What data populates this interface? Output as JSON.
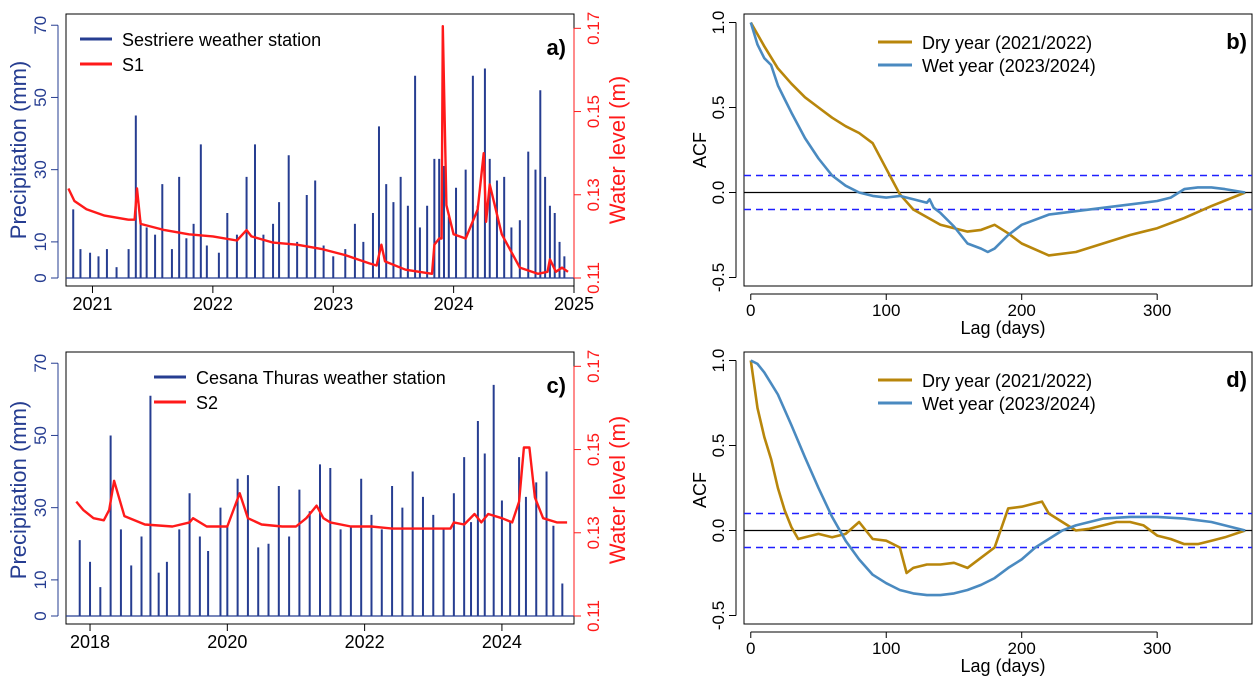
{
  "colors": {
    "precip": "#263d91",
    "level": "#ff1a1a",
    "dry": "#b8860b",
    "wet": "#4a8ac0",
    "ci": "#1f1fff",
    "axis": "#000000"
  },
  "chart_data": [
    {
      "id": "a",
      "type": "bar+line",
      "panel_label": "a)",
      "ylabel_left": "Precipitation (mm)",
      "ylabel_right": "Water level (m)",
      "xlim": [
        2020.78,
        2025.0
      ],
      "x_ticks": [
        2021,
        2022,
        2023,
        2024,
        2025
      ],
      "x_tick_labels": [
        "2021",
        "2022",
        "2023",
        "2024",
        "2025"
      ],
      "ylim_left": [
        0,
        72
      ],
      "y_ticks_left": [
        0,
        10,
        30,
        50,
        70
      ],
      "y_tick_labels_left": [
        "0",
        "10",
        "30",
        "50",
        "70"
      ],
      "ylim_right": [
        0.11,
        0.172
      ],
      "y_ticks_right": [
        0.11,
        0.13,
        0.15,
        0.17
      ],
      "y_tick_labels_right": [
        "0.11",
        "0.13",
        "0.15",
        "0.17"
      ],
      "legend": [
        {
          "name": "Sestriere weather station",
          "color_key": "precip"
        },
        {
          "name": "S1",
          "color_key": "level"
        }
      ],
      "legend_position": "top-left",
      "precipitation_bars": [
        [
          2020.84,
          19
        ],
        [
          2020.9,
          8
        ],
        [
          2020.98,
          7
        ],
        [
          2021.05,
          6
        ],
        [
          2021.12,
          8
        ],
        [
          2021.2,
          3
        ],
        [
          2021.3,
          8
        ],
        [
          2021.36,
          45
        ],
        [
          2021.4,
          16
        ],
        [
          2021.45,
          14
        ],
        [
          2021.52,
          12
        ],
        [
          2021.58,
          26
        ],
        [
          2021.66,
          8
        ],
        [
          2021.72,
          28
        ],
        [
          2021.78,
          11
        ],
        [
          2021.84,
          15
        ],
        [
          2021.9,
          37
        ],
        [
          2021.95,
          9
        ],
        [
          2022.05,
          7
        ],
        [
          2022.12,
          18
        ],
        [
          2022.2,
          12
        ],
        [
          2022.28,
          28
        ],
        [
          2022.35,
          37
        ],
        [
          2022.42,
          12
        ],
        [
          2022.5,
          15
        ],
        [
          2022.55,
          21
        ],
        [
          2022.63,
          34
        ],
        [
          2022.7,
          10
        ],
        [
          2022.78,
          23
        ],
        [
          2022.85,
          27
        ],
        [
          2022.92,
          9
        ],
        [
          2023.0,
          6
        ],
        [
          2023.1,
          8
        ],
        [
          2023.18,
          15
        ],
        [
          2023.25,
          10
        ],
        [
          2023.33,
          18
        ],
        [
          2023.38,
          42
        ],
        [
          2023.44,
          26
        ],
        [
          2023.5,
          21
        ],
        [
          2023.56,
          28
        ],
        [
          2023.62,
          20
        ],
        [
          2023.68,
          56
        ],
        [
          2023.72,
          14
        ],
        [
          2023.78,
          20
        ],
        [
          2023.84,
          33
        ],
        [
          2023.88,
          33
        ],
        [
          2023.92,
          31
        ],
        [
          2023.96,
          17
        ],
        [
          2024.02,
          25
        ],
        [
          2024.1,
          30
        ],
        [
          2024.16,
          56
        ],
        [
          2024.2,
          20
        ],
        [
          2024.26,
          58
        ],
        [
          2024.3,
          33
        ],
        [
          2024.36,
          27
        ],
        [
          2024.42,
          28
        ],
        [
          2024.48,
          14
        ],
        [
          2024.55,
          16
        ],
        [
          2024.62,
          35
        ],
        [
          2024.68,
          30
        ],
        [
          2024.72,
          52
        ],
        [
          2024.76,
          28
        ],
        [
          2024.8,
          20
        ],
        [
          2024.84,
          18
        ],
        [
          2024.88,
          10
        ],
        [
          2024.92,
          6
        ]
      ],
      "water_level": {
        "x": [
          2020.8,
          2020.85,
          2020.95,
          2021.1,
          2021.3,
          2021.35,
          2021.37,
          2021.4,
          2021.6,
          2021.8,
          2022.0,
          2022.2,
          2022.28,
          2022.32,
          2022.5,
          2022.7,
          2022.9,
          2023.1,
          2023.2,
          2023.3,
          2023.36,
          2023.4,
          2023.43,
          2023.6,
          2023.82,
          2023.84,
          2023.88,
          2023.9,
          2023.91,
          2023.94,
          2024.0,
          2024.1,
          2024.2,
          2024.25,
          2024.27,
          2024.3,
          2024.4,
          2024.55,
          2024.7,
          2024.78,
          2024.8,
          2024.85,
          2024.9,
          2024.95
        ],
        "y": [
          0.1315,
          0.1285,
          0.1265,
          0.125,
          0.124,
          0.124,
          0.1315,
          0.123,
          0.1215,
          0.1205,
          0.12,
          0.119,
          0.1215,
          0.12,
          0.1185,
          0.118,
          0.117,
          0.1155,
          0.1145,
          0.1135,
          0.113,
          0.118,
          0.114,
          0.112,
          0.111,
          0.118,
          0.1195,
          0.1195,
          0.1705,
          0.1275,
          0.1205,
          0.1195,
          0.1265,
          0.14,
          0.1235,
          0.1325,
          0.1205,
          0.1125,
          0.111,
          0.1115,
          0.1145,
          0.1115,
          0.1125,
          0.1115
        ]
      }
    },
    {
      "id": "b",
      "type": "line",
      "panel_label": "b)",
      "xlabel": "Lag (days)",
      "ylabel": "ACF",
      "xlim": [
        0,
        365
      ],
      "x_ticks": [
        0,
        100,
        200,
        300
      ],
      "x_tick_labels": [
        "0",
        "100",
        "200",
        "300"
      ],
      "ylim": [
        -0.5,
        1.0
      ],
      "y_ticks": [
        -0.5,
        0.0,
        0.5,
        1.0
      ],
      "y_tick_labels": [
        "-0.5",
        "0.0",
        "0.5",
        "1.0"
      ],
      "confidence_band": 0.1,
      "legend_position": "top",
      "series": [
        {
          "name": "Dry year (2021/2022)",
          "color_key": "dry",
          "x": [
            0,
            10,
            20,
            30,
            40,
            50,
            60,
            70,
            80,
            90,
            100,
            110,
            120,
            140,
            160,
            170,
            180,
            190,
            200,
            220,
            240,
            260,
            280,
            300,
            320,
            340,
            365
          ],
          "y": [
            1.0,
            0.86,
            0.73,
            0.64,
            0.56,
            0.5,
            0.44,
            0.39,
            0.35,
            0.29,
            0.14,
            -0.01,
            -0.1,
            -0.19,
            -0.23,
            -0.22,
            -0.19,
            -0.24,
            -0.3,
            -0.37,
            -0.35,
            -0.3,
            -0.25,
            -0.21,
            -0.15,
            -0.08,
            0.0
          ]
        },
        {
          "name": "Wet year (2023/2024)",
          "color_key": "wet",
          "x": [
            0,
            5,
            10,
            15,
            20,
            25,
            30,
            40,
            50,
            60,
            70,
            80,
            90,
            100,
            110,
            120,
            125,
            130,
            132,
            135,
            140,
            150,
            160,
            170,
            175,
            180,
            190,
            200,
            220,
            240,
            260,
            280,
            300,
            310,
            320,
            330,
            340,
            350,
            365
          ],
          "y": [
            1.0,
            0.87,
            0.79,
            0.75,
            0.63,
            0.55,
            0.47,
            0.32,
            0.2,
            0.1,
            0.04,
            0.0,
            -0.02,
            -0.03,
            -0.02,
            -0.04,
            -0.05,
            -0.06,
            -0.04,
            -0.09,
            -0.12,
            -0.2,
            -0.3,
            -0.33,
            -0.35,
            -0.33,
            -0.25,
            -0.19,
            -0.13,
            -0.11,
            -0.09,
            -0.07,
            -0.05,
            -0.03,
            0.02,
            0.03,
            0.03,
            0.02,
            0.0
          ]
        }
      ]
    },
    {
      "id": "c",
      "type": "bar+line",
      "panel_label": "c)",
      "ylabel_left": "Precipitation (mm)",
      "ylabel_right": "Water level (m)",
      "xlim": [
        2017.65,
        2025.05
      ],
      "x_ticks": [
        2018,
        2020,
        2022,
        2024
      ],
      "x_tick_labels": [
        "2018",
        "2020",
        "2022",
        "2024"
      ],
      "ylim_left": [
        0,
        72
      ],
      "y_ticks_left": [
        0,
        10,
        30,
        50,
        70
      ],
      "y_tick_labels_left": [
        "0",
        "10",
        "30",
        "50",
        "70"
      ],
      "ylim_right": [
        0.11,
        0.172
      ],
      "y_ticks_right": [
        0.11,
        0.13,
        0.15,
        0.17
      ],
      "y_tick_labels_right": [
        "0.11",
        "0.13",
        "0.15",
        "0.17"
      ],
      "legend": [
        {
          "name": "Cesana Thuras weather station",
          "color_key": "precip"
        },
        {
          "name": "S2",
          "color_key": "level"
        }
      ],
      "legend_position": "top-center",
      "precipitation_bars": [
        [
          2017.85,
          21
        ],
        [
          2018.0,
          15
        ],
        [
          2018.15,
          8
        ],
        [
          2018.3,
          50
        ],
        [
          2018.45,
          24
        ],
        [
          2018.6,
          14
        ],
        [
          2018.75,
          22
        ],
        [
          2018.88,
          61
        ],
        [
          2019.0,
          12
        ],
        [
          2019.12,
          15
        ],
        [
          2019.3,
          24
        ],
        [
          2019.45,
          34
        ],
        [
          2019.6,
          22
        ],
        [
          2019.72,
          18
        ],
        [
          2019.9,
          30
        ],
        [
          2020.0,
          25
        ],
        [
          2020.15,
          38
        ],
        [
          2020.3,
          39
        ],
        [
          2020.45,
          19
        ],
        [
          2020.6,
          20
        ],
        [
          2020.75,
          36
        ],
        [
          2020.9,
          22
        ],
        [
          2021.05,
          35
        ],
        [
          2021.2,
          29
        ],
        [
          2021.35,
          42
        ],
        [
          2021.5,
          41
        ],
        [
          2021.65,
          24
        ],
        [
          2021.8,
          25
        ],
        [
          2021.95,
          38
        ],
        [
          2022.1,
          28
        ],
        [
          2022.25,
          24
        ],
        [
          2022.4,
          36
        ],
        [
          2022.55,
          30
        ],
        [
          2022.7,
          40
        ],
        [
          2022.85,
          33
        ],
        [
          2023.0,
          28
        ],
        [
          2023.15,
          24
        ],
        [
          2023.3,
          34
        ],
        [
          2023.45,
          44
        ],
        [
          2023.55,
          26
        ],
        [
          2023.65,
          54
        ],
        [
          2023.75,
          45
        ],
        [
          2023.88,
          64
        ],
        [
          2024.0,
          32
        ],
        [
          2024.12,
          26
        ],
        [
          2024.25,
          44
        ],
        [
          2024.35,
          33
        ],
        [
          2024.5,
          37
        ],
        [
          2024.65,
          40
        ],
        [
          2024.75,
          25
        ],
        [
          2024.88,
          9
        ]
      ],
      "water_level": {
        "x": [
          2017.8,
          2017.9,
          2018.05,
          2018.2,
          2018.28,
          2018.35,
          2018.5,
          2018.8,
          2019.2,
          2019.45,
          2019.5,
          2019.7,
          2020.0,
          2020.18,
          2020.3,
          2020.5,
          2020.8,
          2021.0,
          2021.15,
          2021.3,
          2021.4,
          2021.5,
          2021.8,
          2022.1,
          2022.4,
          2022.7,
          2023.0,
          2023.25,
          2023.3,
          2023.45,
          2023.6,
          2023.7,
          2023.8,
          2024.0,
          2024.15,
          2024.25,
          2024.32,
          2024.4,
          2024.48,
          2024.6,
          2024.8,
          2024.95
        ],
        "y": [
          0.1375,
          0.1355,
          0.1335,
          0.133,
          0.1355,
          0.1425,
          0.134,
          0.132,
          0.1315,
          0.1325,
          0.1335,
          0.1315,
          0.1315,
          0.1395,
          0.1335,
          0.132,
          0.1315,
          0.1315,
          0.1335,
          0.1365,
          0.1335,
          0.1325,
          0.1315,
          0.1315,
          0.131,
          0.131,
          0.131,
          0.131,
          0.1325,
          0.132,
          0.1345,
          0.1325,
          0.1345,
          0.1335,
          0.1325,
          0.1375,
          0.1505,
          0.1505,
          0.1385,
          0.1335,
          0.1325,
          0.1325
        ]
      }
    },
    {
      "id": "d",
      "type": "line",
      "panel_label": "d)",
      "xlabel": "Lag (days)",
      "ylabel": "ACF",
      "xlim": [
        0,
        365
      ],
      "x_ticks": [
        0,
        100,
        200,
        300
      ],
      "x_tick_labels": [
        "0",
        "100",
        "200",
        "300"
      ],
      "ylim": [
        -0.5,
        1.0
      ],
      "y_ticks": [
        -0.5,
        0.0,
        0.5,
        1.0
      ],
      "y_tick_labels": [
        "-0.5",
        "0.0",
        "0.5",
        "1.0"
      ],
      "confidence_band": 0.1,
      "legend_position": "top",
      "series": [
        {
          "name": "Dry year (2021/2022)",
          "color_key": "dry",
          "x": [
            0,
            5,
            10,
            15,
            20,
            25,
            30,
            35,
            40,
            50,
            60,
            70,
            80,
            90,
            100,
            110,
            115,
            120,
            130,
            140,
            150,
            160,
            170,
            180,
            190,
            200,
            210,
            215,
            220,
            230,
            240,
            250,
            260,
            270,
            280,
            290,
            300,
            310,
            320,
            330,
            340,
            350,
            365
          ],
          "y": [
            1.0,
            0.72,
            0.55,
            0.42,
            0.25,
            0.12,
            0.02,
            -0.05,
            -0.04,
            -0.02,
            -0.04,
            -0.02,
            0.05,
            -0.05,
            -0.06,
            -0.1,
            -0.25,
            -0.22,
            -0.2,
            -0.2,
            -0.19,
            -0.22,
            -0.16,
            -0.1,
            0.13,
            0.14,
            0.16,
            0.17,
            0.1,
            0.05,
            0.0,
            0.01,
            0.03,
            0.05,
            0.05,
            0.03,
            -0.03,
            -0.05,
            -0.08,
            -0.08,
            -0.06,
            -0.04,
            0.0
          ]
        },
        {
          "name": "Wet year (2023/2024)",
          "color_key": "wet",
          "x": [
            0,
            5,
            10,
            20,
            30,
            40,
            50,
            60,
            70,
            80,
            90,
            100,
            110,
            120,
            130,
            140,
            150,
            160,
            170,
            180,
            190,
            200,
            210,
            220,
            230,
            240,
            250,
            260,
            280,
            300,
            320,
            340,
            365
          ],
          "y": [
            1.0,
            0.98,
            0.93,
            0.8,
            0.62,
            0.43,
            0.25,
            0.08,
            -0.06,
            -0.17,
            -0.26,
            -0.31,
            -0.35,
            -0.37,
            -0.38,
            -0.38,
            -0.37,
            -0.35,
            -0.32,
            -0.28,
            -0.22,
            -0.17,
            -0.1,
            -0.05,
            0.0,
            0.03,
            0.05,
            0.07,
            0.08,
            0.08,
            0.07,
            0.05,
            0.0
          ]
        }
      ]
    }
  ]
}
